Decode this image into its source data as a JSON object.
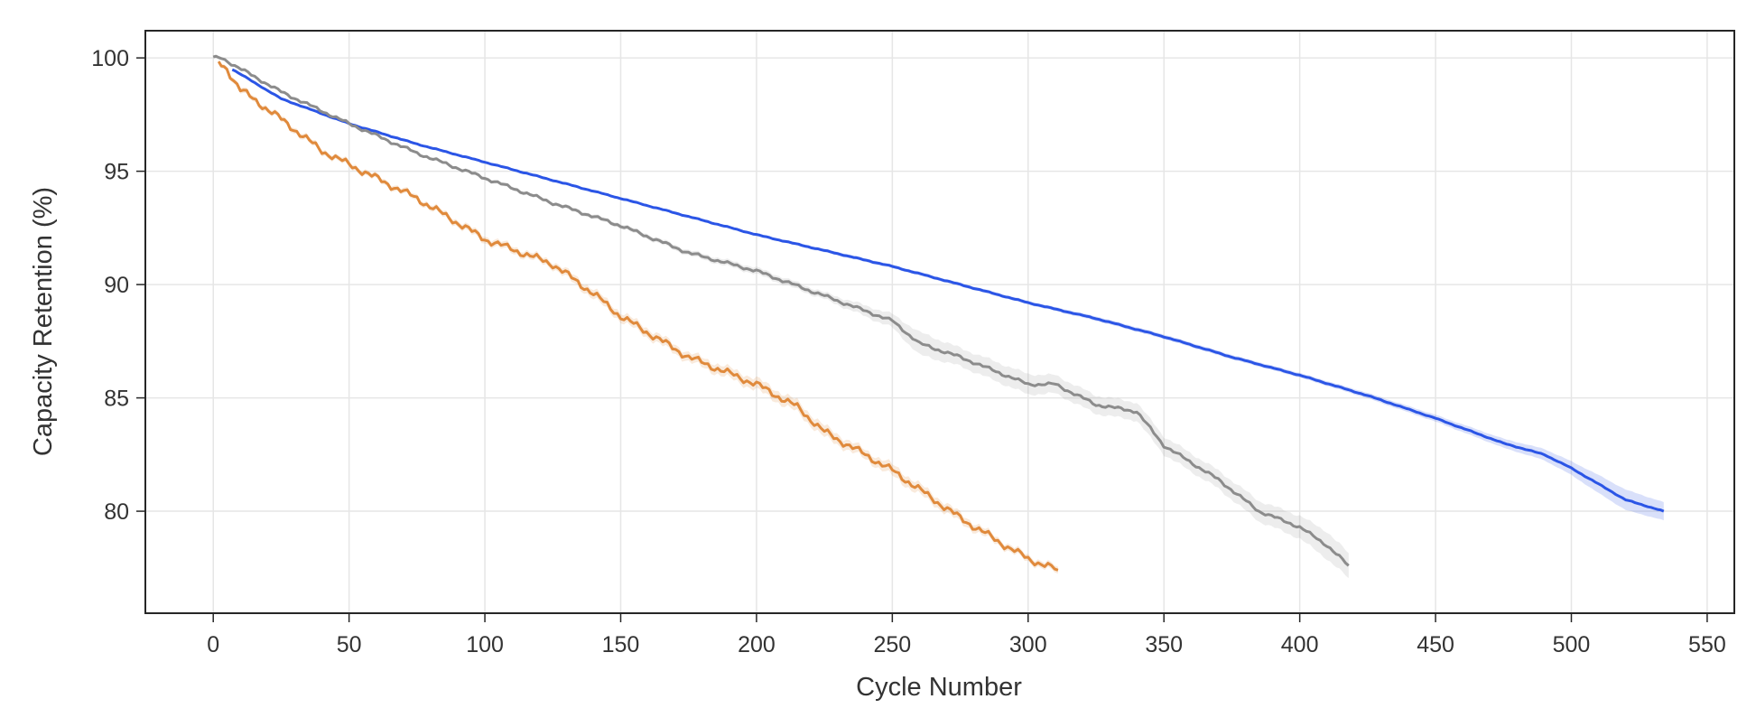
{
  "chart_data": {
    "type": "line",
    "title": "",
    "xlabel": "Cycle Number",
    "ylabel": "Capacity Retention (%)",
    "xlim": [
      -25,
      560
    ],
    "ylim": [
      75.5,
      101.2
    ],
    "xticks": [
      0,
      50,
      100,
      150,
      200,
      250,
      300,
      350,
      400,
      450,
      500,
      550
    ],
    "xtick_labels": [
      "0",
      "50",
      "100",
      "150",
      "200",
      "250",
      "300",
      "350",
      "400",
      "450",
      "500",
      "550"
    ],
    "yticks": [
      80,
      85,
      90,
      95,
      100
    ],
    "ytick_labels": [
      "80",
      "85",
      "90",
      "95",
      "100"
    ],
    "grid": true,
    "legend": "none",
    "series": [
      {
        "name": "blue",
        "color": "#2b55e6",
        "band_color": "#2b55e6",
        "x": [
          7,
          25,
          50,
          75,
          100,
          125,
          150,
          175,
          200,
          225,
          250,
          275,
          300,
          325,
          350,
          375,
          400,
          425,
          450,
          475,
          490,
          500,
          510,
          520,
          534
        ],
        "y": [
          99.5,
          98.2,
          97.1,
          96.2,
          95.4,
          94.6,
          93.8,
          93.0,
          92.2,
          91.5,
          90.8,
          90.0,
          89.2,
          88.5,
          87.7,
          86.8,
          86.0,
          85.1,
          84.1,
          83.0,
          82.5,
          81.9,
          81.2,
          80.5,
          80.0
        ],
        "band": [
          0.05,
          0.05,
          0.05,
          0.05,
          0.05,
          0.05,
          0.05,
          0.05,
          0.05,
          0.08,
          0.08,
          0.08,
          0.08,
          0.1,
          0.1,
          0.1,
          0.1,
          0.12,
          0.15,
          0.2,
          0.25,
          0.3,
          0.4,
          0.45,
          0.4
        ]
      },
      {
        "name": "gray",
        "color": "#8c8c8c",
        "band_color": "#9a9a9a",
        "x": [
          0,
          3,
          25,
          50,
          75,
          100,
          125,
          150,
          175,
          200,
          225,
          250,
          260,
          275,
          300,
          310,
          325,
          340,
          350,
          370,
          385,
          400,
          410,
          418
        ],
        "y": [
          100.0,
          100.0,
          98.5,
          97.1,
          95.8,
          94.7,
          93.6,
          92.6,
          91.4,
          90.6,
          89.5,
          88.4,
          87.4,
          86.8,
          85.6,
          85.6,
          84.7,
          84.4,
          82.9,
          81.4,
          80.0,
          79.3,
          78.5,
          77.6
        ],
        "band": [
          0.05,
          0.05,
          0.05,
          0.05,
          0.05,
          0.08,
          0.08,
          0.1,
          0.12,
          0.15,
          0.15,
          0.3,
          0.5,
          0.4,
          0.45,
          0.4,
          0.4,
          0.4,
          0.4,
          0.4,
          0.45,
          0.5,
          0.6,
          0.55
        ]
      },
      {
        "name": "orange",
        "color": "#e08a3c",
        "band_color": "#e08a3c",
        "x": [
          2,
          5,
          10,
          25,
          40,
          50,
          75,
          100,
          125,
          140,
          150,
          175,
          200,
          215,
          225,
          240,
          250,
          275,
          290,
          300,
          311
        ],
        "y": [
          99.8,
          99.5,
          98.6,
          97.3,
          95.9,
          95.3,
          93.8,
          92.0,
          90.9,
          89.6,
          88.6,
          86.8,
          85.6,
          84.6,
          83.5,
          82.5,
          81.8,
          79.7,
          78.6,
          77.9,
          77.4
        ],
        "band": [
          0.1,
          0.1,
          0.12,
          0.12,
          0.12,
          0.12,
          0.12,
          0.15,
          0.15,
          0.2,
          0.2,
          0.2,
          0.25,
          0.25,
          0.25,
          0.2,
          0.25,
          0.2,
          0.15,
          0.15,
          0.15
        ]
      }
    ]
  }
}
